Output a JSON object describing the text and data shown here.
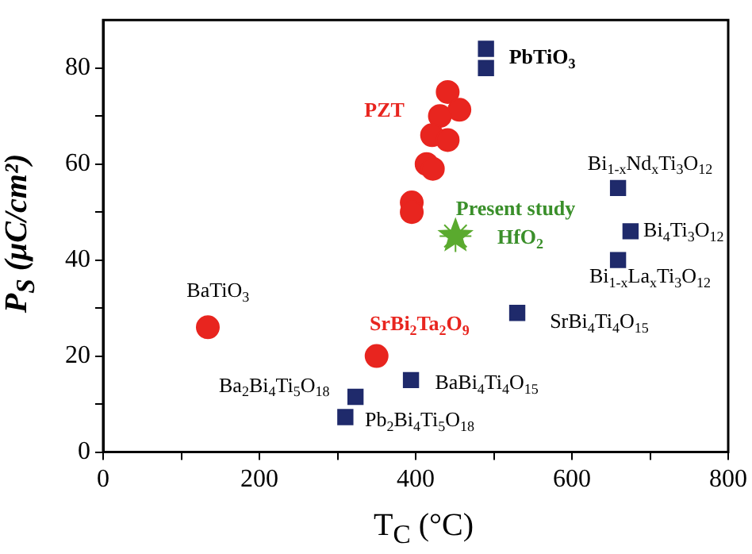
{
  "chart_data": {
    "type": "scatter",
    "xlabel": "T$_{C}$ (°C)",
    "ylabel": "P$_{S}$ (μC/cm²)",
    "xlim": [
      0,
      800
    ],
    "xticks": [
      0,
      {
        "value": 100,
        "label": null
      },
      200,
      {
        "value": 300,
        "label": null
      },
      400,
      {
        "value": 500,
        "label": null
      },
      600,
      {
        "value": 700,
        "label": null
      },
      800
    ],
    "ylim": [
      0,
      90
    ],
    "yticks": [
      0,
      {
        "value": 10,
        "label": null
      },
      20,
      {
        "value": 30,
        "label": null
      },
      40,
      {
        "value": 50,
        "label": null
      },
      60,
      {
        "value": 70,
        "label": null
      },
      80
    ],
    "grid": false,
    "legend": false,
    "series": [
      {
        "color": "#e8251f",
        "marker": "circle",
        "x": [
          441,
          456,
          431,
          421,
          441,
          414,
          422,
          395,
          395,
          134,
          350
        ],
        "values": [
          75,
          71.3,
          70,
          66,
          65,
          60,
          59,
          52,
          50,
          26,
          20
        ]
      },
      {
        "color": "#1f2a6b",
        "marker": "square",
        "x": [
          490,
          490,
          659,
          675,
          659,
          530,
          394,
          323,
          310
        ],
        "values": [
          84,
          80,
          55,
          46,
          40,
          29,
          15,
          11.5,
          7.3
        ]
      },
      {
        "color": "#5aaa2e",
        "marker": "star",
        "x": [
          451
        ],
        "values": [
          45
        ]
      }
    ],
    "annotations": [
      "PZT",
      "PbTiO$_{3}$",
      "Present study",
      "HfO$_{2}$",
      "Bi$_{1-x}$Nd$_{x}$Ti$_{3}$O$_{12}$",
      "Bi$_{4}$Ti$_{3}$O$_{12}$",
      "Bi$_{1-x}$La$_{x}$Ti$_{3}$O$_{12}$",
      "SrBi$_{4}$Ti$_{4}$O$_{15}$",
      "BaTiO$_{3}$",
      "SrBi$_{2}$Ta$_{2}$O$_{9}$",
      "Ba$_{2}$Bi$_{4}$Ti$_{5}$O$_{18}$",
      "BaBi$_{4}$Ti$_{4}$O$_{15}$",
      "Pb$_{2}$Bi$_{4}$Ti$_{5}$O$_{18}$"
    ]
  }
}
